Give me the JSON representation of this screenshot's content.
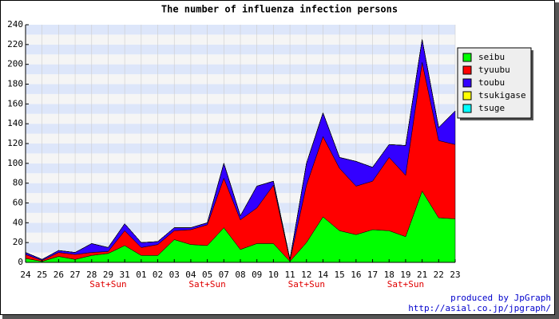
{
  "chart_data": {
    "type": "stacked_area",
    "title": "The number of influenza infection persons",
    "categories": [
      "24",
      "25",
      "26",
      "27",
      "28",
      "29",
      "31",
      "01",
      "02",
      "03",
      "04",
      "05",
      "07",
      "08",
      "09",
      "10",
      "11",
      "12",
      "14",
      "15",
      "16",
      "17",
      "18",
      "19",
      "21",
      "22",
      "23"
    ],
    "sublabels": [
      null,
      null,
      null,
      null,
      null,
      "Sat+Sun",
      null,
      null,
      null,
      null,
      null,
      "Sat+Sun",
      null,
      null,
      null,
      null,
      null,
      "Sat+Sun",
      null,
      null,
      null,
      null,
      null,
      "Sat+Sun",
      null,
      null,
      null
    ],
    "series": [
      {
        "name": "seibu",
        "color": "#00ff00",
        "values": [
          4,
          1,
          6,
          3,
          7,
          9,
          17,
          7,
          7,
          23,
          18,
          17,
          35,
          13,
          19,
          19,
          1,
          20,
          46,
          32,
          28,
          33,
          32,
          26,
          72,
          45,
          44
        ]
      },
      {
        "name": "tyuubu",
        "color": "#ff0000",
        "values": [
          4,
          1,
          4,
          5,
          3,
          2,
          15,
          8,
          11,
          9,
          15,
          21,
          50,
          30,
          36,
          59,
          1,
          58,
          81,
          63,
          49,
          49,
          74,
          62,
          130,
          78,
          75
        ]
      },
      {
        "name": "toubu",
        "color": "#3300ff",
        "values": [
          2,
          1,
          2,
          2,
          9,
          4,
          7,
          5,
          3,
          3,
          2,
          2,
          15,
          4,
          22,
          4,
          1,
          22,
          24,
          11,
          25,
          14,
          13,
          30,
          23,
          13,
          34
        ]
      },
      {
        "name": "tsukigase",
        "color": "#ffff00",
        "values": [
          0,
          0,
          0,
          0,
          0,
          0,
          0,
          0,
          0,
          0,
          0,
          0,
          0,
          0,
          0,
          0,
          0,
          0,
          0,
          0,
          0,
          0,
          0,
          0,
          0,
          0,
          0
        ]
      },
      {
        "name": "tsuge",
        "color": "#00ffff",
        "values": [
          0,
          0,
          0,
          0,
          0,
          0,
          0,
          0,
          0,
          0,
          0,
          0,
          0,
          0,
          0,
          0,
          0,
          0,
          0,
          0,
          0,
          0,
          0,
          0,
          0,
          0,
          0
        ]
      }
    ],
    "ylim": [
      0,
      240
    ],
    "yticks": [
      0,
      20,
      40,
      60,
      80,
      100,
      120,
      140,
      160,
      180,
      200,
      220,
      240
    ],
    "grid": true,
    "legend": "upper right",
    "credits": [
      "produced by JpGraph",
      "http://asial.co.jp/jpgraph/"
    ]
  }
}
